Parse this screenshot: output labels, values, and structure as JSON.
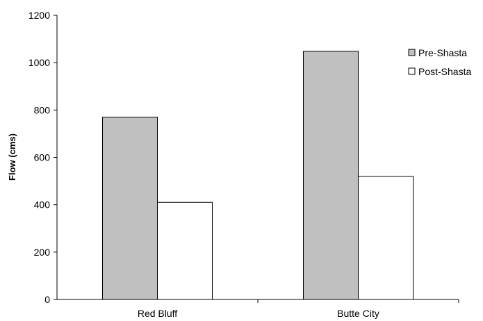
{
  "chart_data": {
    "type": "bar",
    "title": "",
    "xlabel": "",
    "ylabel": "Flow (cms)",
    "categories": [
      "Red Bluff",
      "Butte City"
    ],
    "series": [
      {
        "name": "Pre-Shasta",
        "values": [
          770,
          1048
        ],
        "color": "#c0c0c0"
      },
      {
        "name": "Post-Shasta",
        "values": [
          410,
          520
        ],
        "color": "#ffffff"
      }
    ],
    "ylim": [
      0,
      1200
    ],
    "yticks": [
      0,
      200,
      400,
      600,
      800,
      1000,
      1200
    ],
    "ytick_labels": [
      "0",
      "200",
      "400",
      "600",
      "800",
      "1000",
      "1200"
    ],
    "grid": false,
    "legend_position": "top-right"
  }
}
